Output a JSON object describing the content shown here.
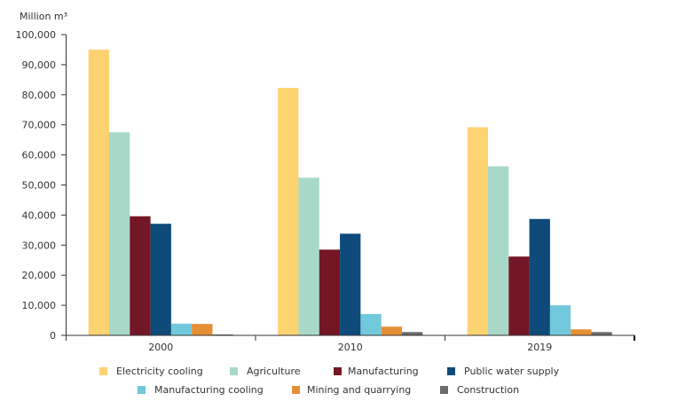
{
  "chart_data": {
    "type": "bar",
    "title": "",
    "unit_label": "Million m³",
    "xlabel": "",
    "ylabel": "Million m³",
    "ylim": [
      0,
      100000
    ],
    "yticks": [
      0,
      10000,
      20000,
      30000,
      40000,
      50000,
      60000,
      70000,
      80000,
      90000,
      100000
    ],
    "ytick_labels": [
      "0",
      "10,000",
      "20,000",
      "30,000",
      "40,000",
      "50,000",
      "60,000",
      "70,000",
      "80,000",
      "90,000",
      "100,000"
    ],
    "grid": false,
    "legend_position": "bottom",
    "categories": [
      "2000",
      "2010",
      "2019"
    ],
    "series": [
      {
        "name": "Electricity cooling",
        "color": "#FDD372",
        "values": [
          95000,
          82300,
          69200
        ]
      },
      {
        "name": "Agriculture",
        "color": "#A8D8C8",
        "values": [
          67500,
          52400,
          56200
        ]
      },
      {
        "name": "Manufacturing",
        "color": "#731726",
        "values": [
          39600,
          28500,
          26200
        ]
      },
      {
        "name": "Public water supply",
        "color": "#0E4A7A",
        "values": [
          37100,
          33800,
          38700
        ]
      },
      {
        "name": "Manufacturing cooling",
        "color": "#72C8DB",
        "values": [
          3900,
          7100,
          10000
        ]
      },
      {
        "name": "Mining and quarrying",
        "color": "#E58F34",
        "values": [
          3800,
          2900,
          2000
        ]
      },
      {
        "name": "Construction",
        "color": "#6B6B6B",
        "values": [
          300,
          1100,
          1100
        ]
      }
    ]
  },
  "legend": {
    "rows": [
      [
        0,
        1,
        2,
        3
      ],
      [
        4,
        5,
        6
      ]
    ]
  }
}
